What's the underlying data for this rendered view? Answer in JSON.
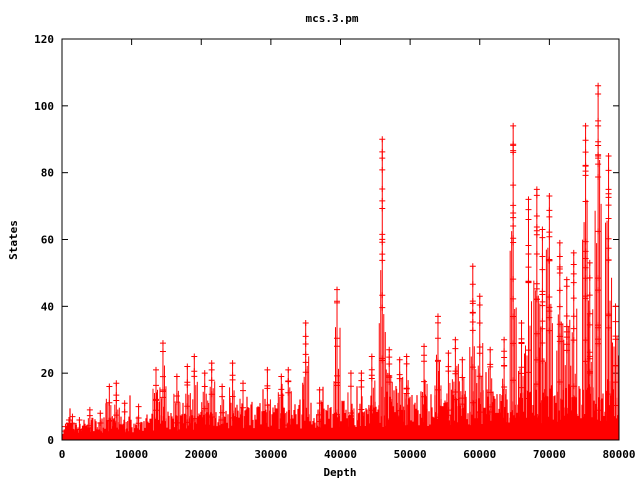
{
  "chart_data": {
    "type": "line",
    "title": "mcs.3.pm",
    "xlabel": "Depth",
    "ylabel": "States",
    "xlim": [
      0,
      80000
    ],
    "ylim": [
      0,
      120
    ],
    "xticks": [
      "0",
      "10000",
      "20000",
      "30000",
      "40000",
      "50000",
      "60000",
      "70000",
      "80000"
    ],
    "yticks": [
      "0",
      "20",
      "40",
      "60",
      "80",
      "100",
      "120"
    ],
    "grid": false,
    "legend": "none",
    "series_color": "#ff0000",
    "peaks": [
      {
        "x": 500,
        "y": 4
      },
      {
        "x": 1000,
        "y": 6
      },
      {
        "x": 1500,
        "y": 7
      },
      {
        "x": 2500,
        "y": 6
      },
      {
        "x": 4000,
        "y": 9
      },
      {
        "x": 5500,
        "y": 8
      },
      {
        "x": 6800,
        "y": 16
      },
      {
        "x": 7800,
        "y": 17
      },
      {
        "x": 9000,
        "y": 11
      },
      {
        "x": 11000,
        "y": 10
      },
      {
        "x": 13500,
        "y": 21
      },
      {
        "x": 14500,
        "y": 29
      },
      {
        "x": 16500,
        "y": 19
      },
      {
        "x": 18000,
        "y": 22
      },
      {
        "x": 19000,
        "y": 25
      },
      {
        "x": 20500,
        "y": 20
      },
      {
        "x": 21500,
        "y": 23
      },
      {
        "x": 23000,
        "y": 16
      },
      {
        "x": 24500,
        "y": 23
      },
      {
        "x": 26000,
        "y": 17
      },
      {
        "x": 29500,
        "y": 21
      },
      {
        "x": 31500,
        "y": 19
      },
      {
        "x": 32500,
        "y": 21
      },
      {
        "x": 35000,
        "y": 35
      },
      {
        "x": 37000,
        "y": 15
      },
      {
        "x": 39500,
        "y": 45
      },
      {
        "x": 41500,
        "y": 20
      },
      {
        "x": 43000,
        "y": 20
      },
      {
        "x": 44500,
        "y": 25
      },
      {
        "x": 46000,
        "y": 90
      },
      {
        "x": 47000,
        "y": 27
      },
      {
        "x": 48500,
        "y": 24
      },
      {
        "x": 49500,
        "y": 25
      },
      {
        "x": 52000,
        "y": 28
      },
      {
        "x": 54000,
        "y": 37
      },
      {
        "x": 55500,
        "y": 26
      },
      {
        "x": 56500,
        "y": 30
      },
      {
        "x": 57500,
        "y": 24
      },
      {
        "x": 59000,
        "y": 52
      },
      {
        "x": 60000,
        "y": 43
      },
      {
        "x": 61500,
        "y": 27
      },
      {
        "x": 63500,
        "y": 30
      },
      {
        "x": 64800,
        "y": 94
      },
      {
        "x": 66000,
        "y": 35
      },
      {
        "x": 67000,
        "y": 72
      },
      {
        "x": 68200,
        "y": 75
      },
      {
        "x": 69000,
        "y": 63
      },
      {
        "x": 70000,
        "y": 73
      },
      {
        "x": 71500,
        "y": 59
      },
      {
        "x": 72500,
        "y": 48
      },
      {
        "x": 73500,
        "y": 56
      },
      {
        "x": 75200,
        "y": 94
      },
      {
        "x": 75800,
        "y": 53
      },
      {
        "x": 77000,
        "y": 106
      },
      {
        "x": 78500,
        "y": 85
      },
      {
        "x": 79500,
        "y": 40
      }
    ]
  }
}
